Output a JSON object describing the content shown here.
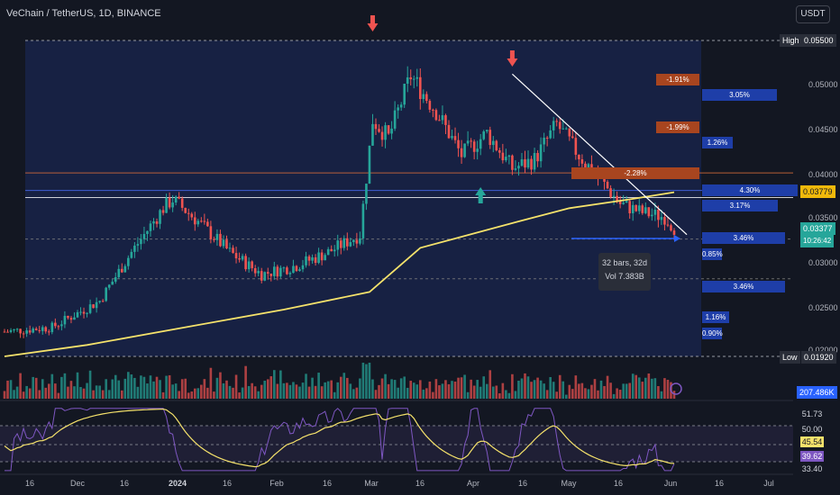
{
  "header": {
    "title": "VeChain / TetherUS, 1D, BINANCE",
    "currency_button": "USDT"
  },
  "price_labels": [
    "0.05500",
    "0.05000",
    "0.04500",
    "0.04000",
    "0.03500",
    "0.03000",
    "0.02500",
    "0.02000"
  ],
  "hi_lo": {
    "high_label": "High",
    "high_value": "0.05500",
    "low_label": "Low",
    "low_value": "0.01920"
  },
  "badges": {
    "current_price": "0.03779",
    "close_price": "0.03377",
    "countdown": "10:26:42",
    "volume": "207.486K"
  },
  "measure_tooltip": {
    "line1": "32 bars, 32d",
    "line2": "Vol 7.383B"
  },
  "depth_labels": [
    {
      "text": "-1.91%",
      "side": "ask"
    },
    {
      "text": "3.05%",
      "side": "bid"
    },
    {
      "text": "-1.99%",
      "side": "ask"
    },
    {
      "text": "1.26%",
      "side": "bid"
    },
    {
      "text": "-2.28%",
      "side": "ask"
    },
    {
      "text": "4.30%",
      "side": "bid"
    },
    {
      "text": "3.17%",
      "side": "bid"
    },
    {
      "text": "3.46%",
      "side": "bid"
    },
    {
      "text": "0.85%",
      "side": "bid"
    },
    {
      "text": "3.46%",
      "side": "bid"
    },
    {
      "text": "1.16%",
      "side": "bid"
    },
    {
      "text": "0.90%",
      "side": "bid"
    }
  ],
  "rsi": {
    "values": [
      "51.73",
      "50.00",
      "45.54",
      "39.62",
      "33.40"
    ]
  },
  "date_axis": [
    {
      "label": "16",
      "bold": false
    },
    {
      "label": "Dec",
      "bold": false
    },
    {
      "label": "16",
      "bold": false
    },
    {
      "label": "2024",
      "bold": true
    },
    {
      "label": "16",
      "bold": false
    },
    {
      "label": "Feb",
      "bold": false
    },
    {
      "label": "16",
      "bold": false
    },
    {
      "label": "Mar",
      "bold": false
    },
    {
      "label": "16",
      "bold": false
    },
    {
      "label": "Apr",
      "bold": false
    },
    {
      "label": "16",
      "bold": false
    },
    {
      "label": "May",
      "bold": false
    },
    {
      "label": "16",
      "bold": false
    },
    {
      "label": "Jun",
      "bold": false
    },
    {
      "label": "16",
      "bold": false
    },
    {
      "label": "Jul",
      "bold": false
    }
  ],
  "colors": {
    "up": "#26a69a",
    "down": "#ef5350",
    "ma": "#f5e26b",
    "trend": "#ffffff",
    "rsi": "#7e57c2",
    "panel": "#1c2a5e",
    "bid": "#1e3ea8",
    "ask": "#a8451f"
  },
  "chart_data": {
    "type": "candlestick",
    "pair": "VET/USDT",
    "interval": "1D",
    "ylim": [
      0.0192,
      0.055
    ],
    "high": 0.055,
    "low": 0.0192,
    "last_close": 0.03377,
    "moving_average_last": 0.03779,
    "series": [
      {
        "name": "price_path",
        "points": [
          [
            "2023-11-05",
            0.022
          ],
          [
            "2023-11-20",
            0.0225
          ],
          [
            "2023-12-05",
            0.0255
          ],
          [
            "2023-12-15",
            0.031
          ],
          [
            "2023-12-25",
            0.036
          ],
          [
            "2023-12-28",
            0.037
          ],
          [
            "2024-01-05",
            0.0345
          ],
          [
            "2024-01-15",
            0.031
          ],
          [
            "2024-01-25",
            0.0285
          ],
          [
            "2024-02-05",
            0.0295
          ],
          [
            "2024-02-15",
            0.031
          ],
          [
            "2024-02-25",
            0.033
          ],
          [
            "2024-02-29",
            0.046
          ],
          [
            "2024-03-05",
            0.044
          ],
          [
            "2024-03-12",
            0.051
          ],
          [
            "2024-03-20",
            0.047
          ],
          [
            "2024-03-28",
            0.042
          ],
          [
            "2024-04-05",
            0.0445
          ],
          [
            "2024-04-13",
            0.0405
          ],
          [
            "2024-04-20",
            0.0415
          ],
          [
            "2024-04-27",
            0.0455
          ],
          [
            "2024-05-04",
            0.042
          ],
          [
            "2024-05-10",
            0.0395
          ],
          [
            "2024-05-17",
            0.0365
          ],
          [
            "2024-05-24",
            0.0355
          ],
          [
            "2024-05-31",
            0.035
          ],
          [
            "2024-06-03",
            0.0338
          ]
        ]
      },
      {
        "name": "moving_average",
        "points": [
          [
            "2023-11-05",
            0.0192
          ],
          [
            "2023-12-01",
            0.0205
          ],
          [
            "2024-01-01",
            0.0225
          ],
          [
            "2024-02-01",
            0.0245
          ],
          [
            "2024-02-28",
            0.0265
          ],
          [
            "2024-03-15",
            0.0315
          ],
          [
            "2024-04-15",
            0.0345
          ],
          [
            "2024-05-01",
            0.036
          ],
          [
            "2024-05-20",
            0.037
          ],
          [
            "2024-06-03",
            0.0378
          ]
        ]
      }
    ],
    "horizontal_levels": [
      0.04,
      0.038,
      0.0372,
      0.0325,
      0.028
    ],
    "trendline": {
      "from": [
        "2024-04-13",
        0.0512
      ],
      "to": [
        "2024-06-07",
        0.033
      ]
    },
    "annotations": [
      {
        "type": "arrow_down",
        "date": "2024-02-29",
        "color": "red"
      },
      {
        "type": "arrow_down",
        "date": "2024-04-13",
        "color": "red"
      },
      {
        "type": "arrow_up",
        "date": "2024-04-03",
        "color": "teal"
      }
    ],
    "rsi": {
      "ylim": [
        25,
        80
      ],
      "levels": [
        50.0
      ]
    }
  }
}
